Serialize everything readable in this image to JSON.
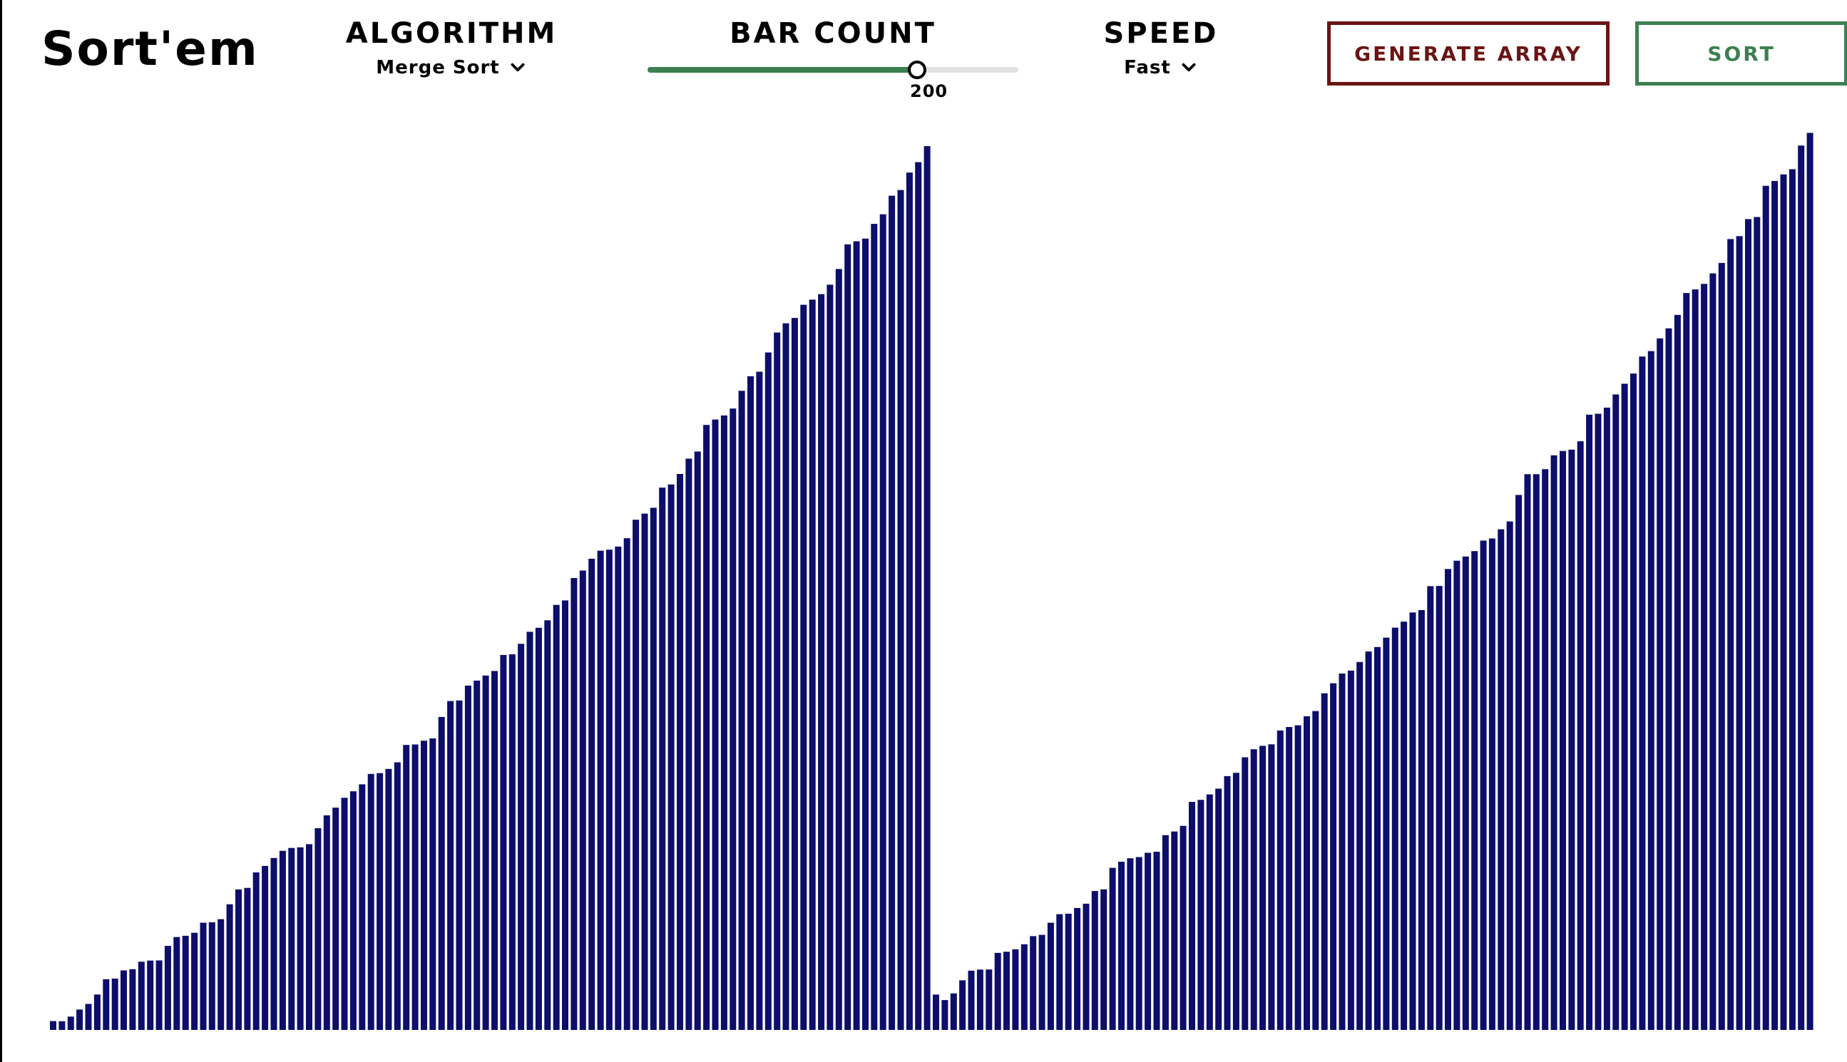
{
  "app": {
    "title": "Sort'em"
  },
  "controls": {
    "algorithm": {
      "label": "ALGORITHM",
      "selected": "Merge Sort",
      "icon": "chevron-down-icon"
    },
    "bar_count": {
      "label": "BAR COUNT",
      "value": 200,
      "min": 0,
      "max": 275
    },
    "speed": {
      "label": "SPEED",
      "selected": "Fast",
      "icon": "chevron-down-icon"
    },
    "generate_label": "GENERATE ARRAY",
    "sort_label": "SORT"
  },
  "colors": {
    "bar": "#0d0d6b",
    "generate": "#6b1414",
    "sort": "#3d8050",
    "slider_fill": "#3d8050",
    "slider_track": "#e2e2e2"
  },
  "chart_data": {
    "type": "bar",
    "ylim": [
      0,
      1000
    ],
    "left_run": {
      "count": 100,
      "min": 10,
      "max": 1000
    },
    "right_run": {
      "count": 100,
      "min": 40,
      "max": 1015
    }
  }
}
